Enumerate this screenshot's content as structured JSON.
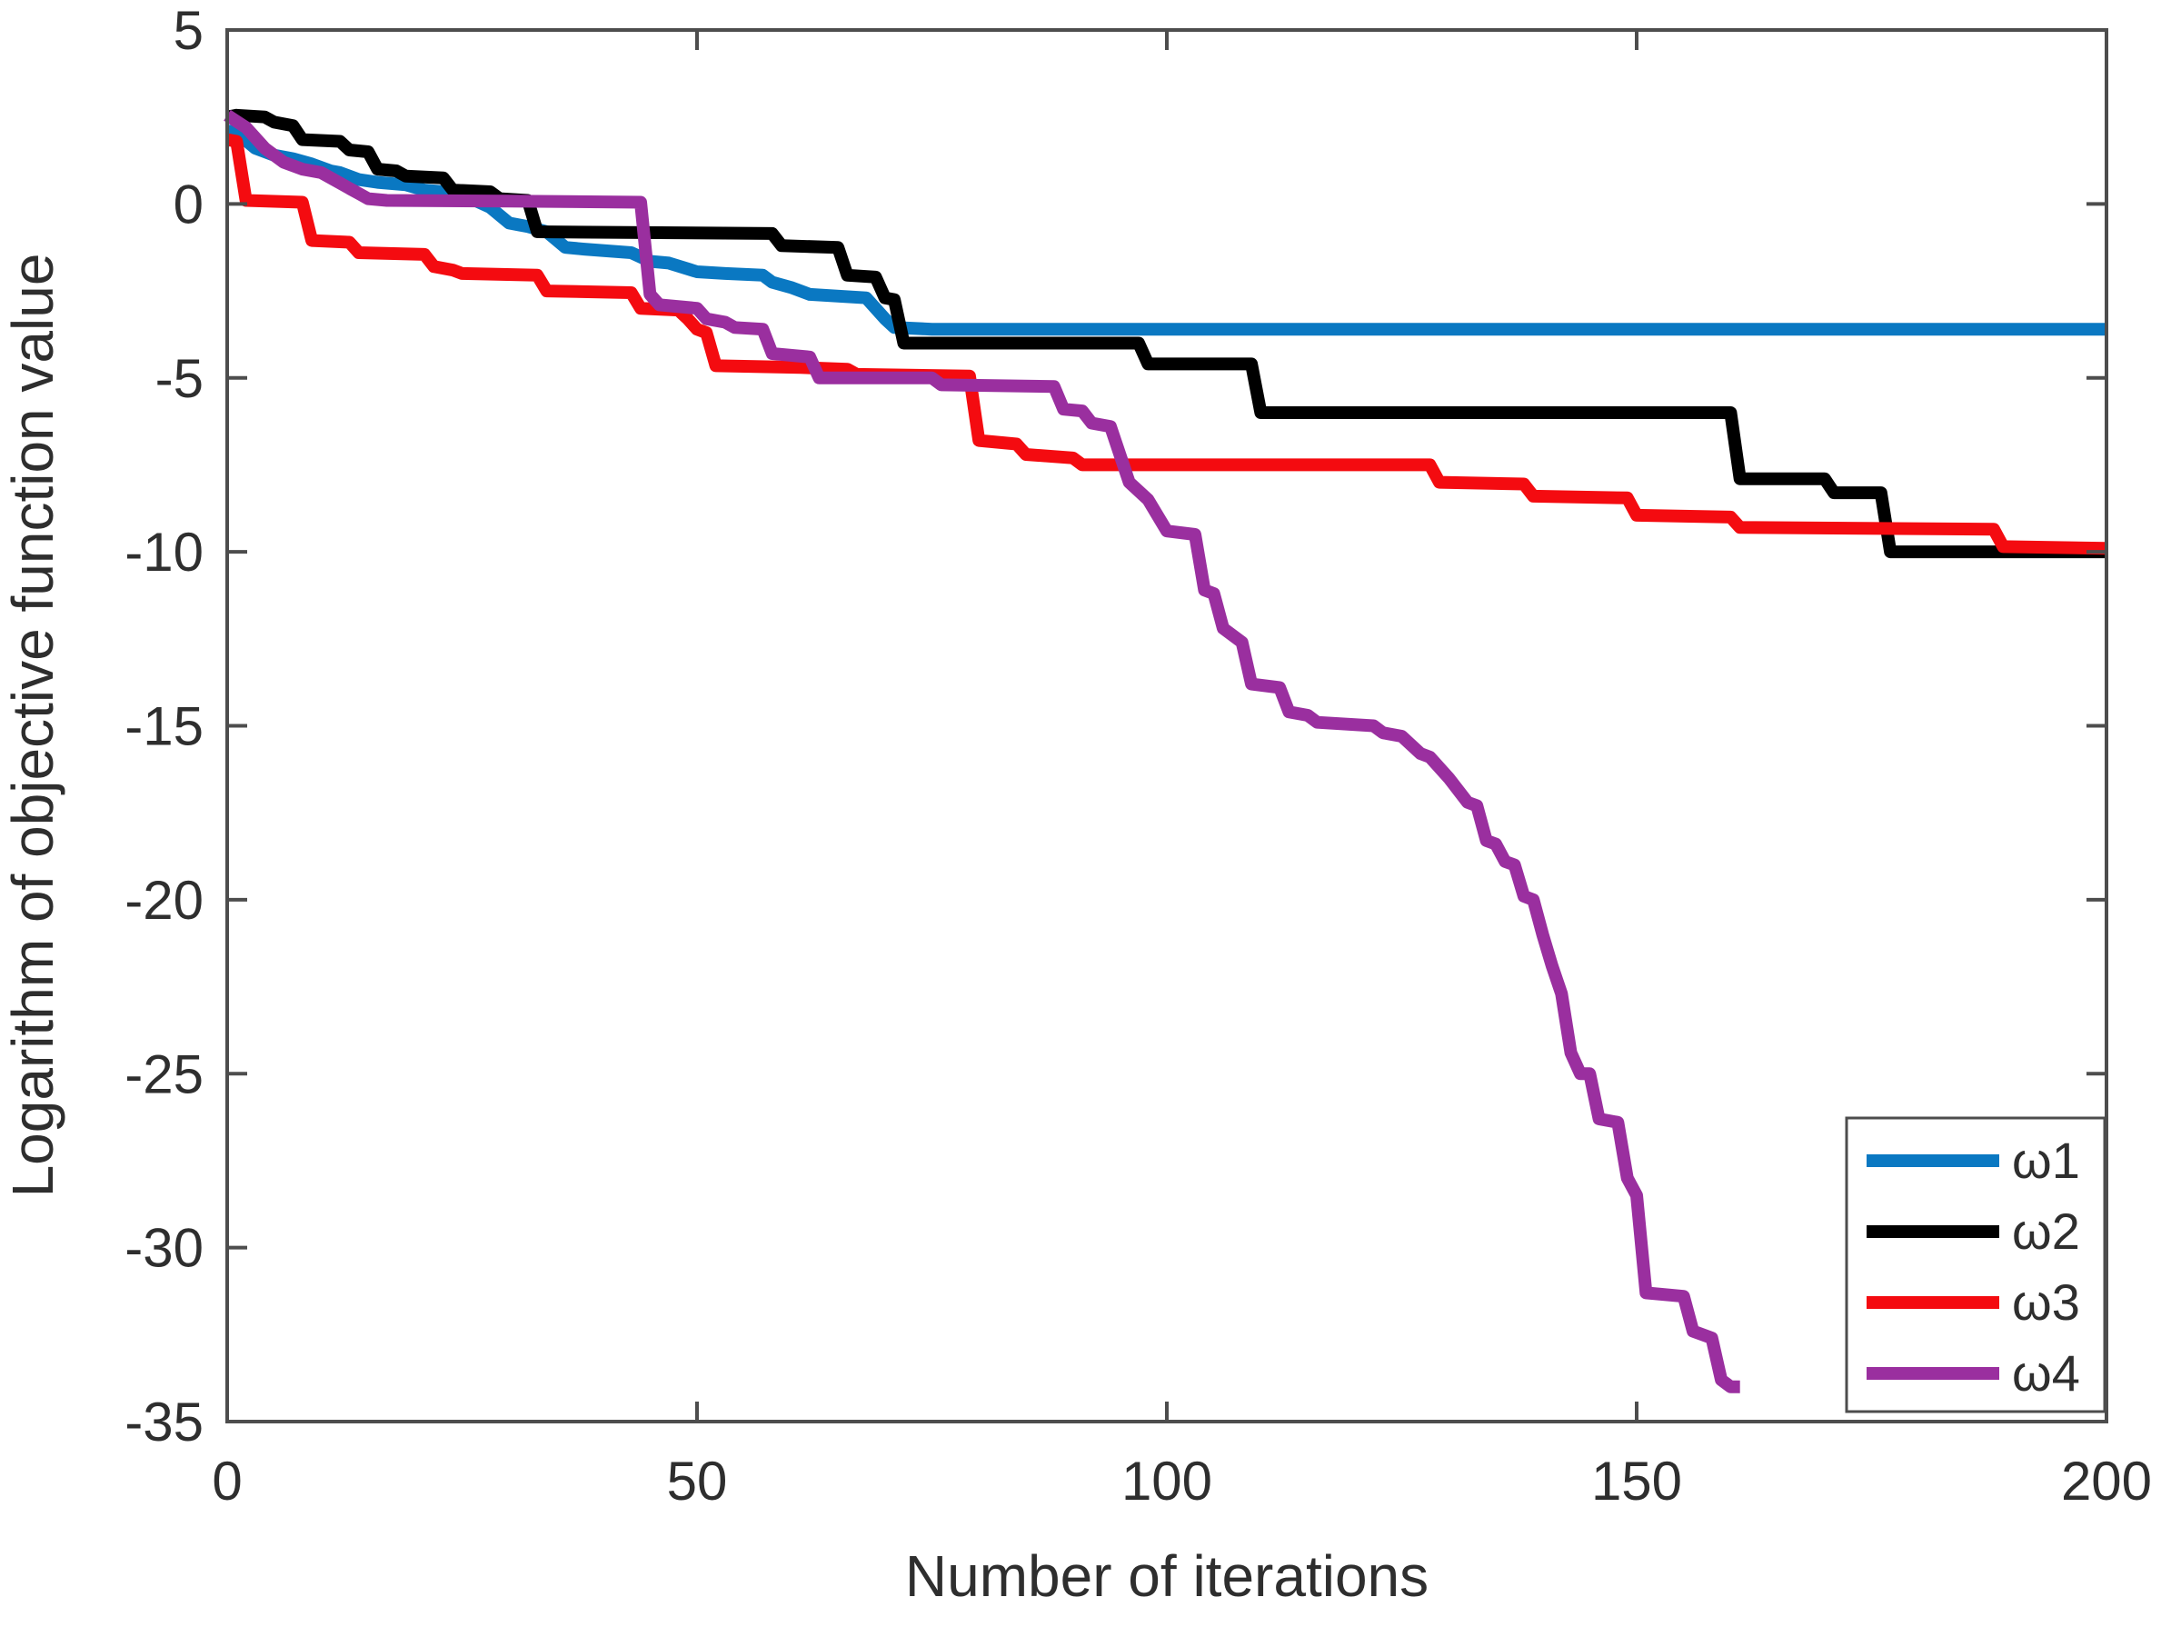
{
  "figure": {
    "background": "#ffffff",
    "frame_color": "#4d4d4d",
    "text_color": "#2e2e2e"
  },
  "chart_data": {
    "type": "line",
    "title": "",
    "xlabel": "Number of iterations",
    "ylabel": "Logarithm of objective function value",
    "xlim": [
      0,
      200
    ],
    "ylim": [
      -35,
      5
    ],
    "xticks": [
      0,
      50,
      100,
      150,
      200
    ],
    "yticks": [
      5,
      0,
      -5,
      -10,
      -15,
      -20,
      -25,
      -30,
      -35
    ],
    "grid": false,
    "legend_position": "bottom-right",
    "line_width": 14,
    "series": [
      {
        "name": "ω1",
        "id": "omega1",
        "color": "#0a78c2",
        "points": [
          [
            0,
            2.1
          ],
          [
            1,
            2.05
          ],
          [
            3,
            1.6
          ],
          [
            5,
            1.4
          ],
          [
            7,
            1.3
          ],
          [
            9,
            1.15
          ],
          [
            11,
            0.95
          ],
          [
            12,
            0.9
          ],
          [
            14,
            0.7
          ],
          [
            16,
            0.62
          ],
          [
            19,
            0.55
          ],
          [
            21,
            0.4
          ],
          [
            23,
            0.35
          ],
          [
            25,
            0.3
          ],
          [
            26,
            0.15
          ],
          [
            28,
            -0.1
          ],
          [
            30,
            -0.55
          ],
          [
            32,
            -0.65
          ],
          [
            34,
            -0.8
          ],
          [
            36,
            -1.25
          ],
          [
            38,
            -1.3
          ],
          [
            43,
            -1.4
          ],
          [
            45,
            -1.65
          ],
          [
            47,
            -1.7
          ],
          [
            50,
            -1.95
          ],
          [
            53,
            -2.0
          ],
          [
            57,
            -2.05
          ],
          [
            58,
            -2.25
          ],
          [
            60,
            -2.4
          ],
          [
            62,
            -2.6
          ],
          [
            68,
            -2.7
          ],
          [
            70,
            -3.3
          ],
          [
            71,
            -3.55
          ],
          [
            75,
            -3.6
          ],
          [
            200,
            -3.6
          ]
        ]
      },
      {
        "name": "ω2",
        "id": "omega2",
        "color": "#000000",
        "points": [
          [
            0,
            2.5
          ],
          [
            1,
            2.55
          ],
          [
            4,
            2.5
          ],
          [
            5,
            2.35
          ],
          [
            7,
            2.25
          ],
          [
            8,
            1.85
          ],
          [
            12,
            1.8
          ],
          [
            13,
            1.55
          ],
          [
            15,
            1.5
          ],
          [
            16,
            1.0
          ],
          [
            18,
            0.95
          ],
          [
            19,
            0.8
          ],
          [
            23,
            0.75
          ],
          [
            24,
            0.4
          ],
          [
            28,
            0.35
          ],
          [
            29,
            0.15
          ],
          [
            32,
            0.1
          ],
          [
            33,
            -0.8
          ],
          [
            58,
            -0.85
          ],
          [
            59,
            -1.2
          ],
          [
            65,
            -1.25
          ],
          [
            66,
            -2.05
          ],
          [
            69,
            -2.1
          ],
          [
            70,
            -2.7
          ],
          [
            71,
            -2.75
          ],
          [
            72,
            -4.0
          ],
          [
            97,
            -4.0
          ],
          [
            98,
            -4.6
          ],
          [
            109,
            -4.6
          ],
          [
            110,
            -6.0
          ],
          [
            160,
            -6.0
          ],
          [
            161,
            -7.9
          ],
          [
            170,
            -7.9
          ],
          [
            171,
            -8.3
          ],
          [
            176,
            -8.3
          ],
          [
            177,
            -10.0
          ],
          [
            200,
            -10.0
          ]
        ]
      },
      {
        "name": "ω3",
        "id": "omega3",
        "color": "#f40b10",
        "points": [
          [
            0,
            1.85
          ],
          [
            1,
            1.8
          ],
          [
            2,
            0.1
          ],
          [
            8,
            0.05
          ],
          [
            9,
            -1.05
          ],
          [
            13,
            -1.1
          ],
          [
            14,
            -1.4
          ],
          [
            21,
            -1.45
          ],
          [
            22,
            -1.8
          ],
          [
            24,
            -1.9
          ],
          [
            25,
            -2.0
          ],
          [
            33,
            -2.05
          ],
          [
            34,
            -2.5
          ],
          [
            43,
            -2.55
          ],
          [
            44,
            -3.0
          ],
          [
            48,
            -3.05
          ],
          [
            49,
            -3.3
          ],
          [
            50,
            -3.6
          ],
          [
            51,
            -3.7
          ],
          [
            52,
            -4.65
          ],
          [
            61,
            -4.7
          ],
          [
            66,
            -4.75
          ],
          [
            67,
            -4.9
          ],
          [
            79,
            -4.95
          ],
          [
            80,
            -6.8
          ],
          [
            84,
            -6.9
          ],
          [
            85,
            -7.2
          ],
          [
            90,
            -7.3
          ],
          [
            91,
            -7.5
          ],
          [
            128,
            -7.5
          ],
          [
            129,
            -8.0
          ],
          [
            138,
            -8.05
          ],
          [
            139,
            -8.4
          ],
          [
            149,
            -8.45
          ],
          [
            150,
            -8.95
          ],
          [
            160,
            -9.0
          ],
          [
            161,
            -9.3
          ],
          [
            188,
            -9.35
          ],
          [
            189,
            -9.85
          ],
          [
            200,
            -9.9
          ]
        ]
      },
      {
        "name": "ω4",
        "id": "omega4",
        "color": "#9a2f9f",
        "points": [
          [
            0,
            2.55
          ],
          [
            2,
            2.2
          ],
          [
            4,
            1.6
          ],
          [
            6,
            1.2
          ],
          [
            8,
            1.0
          ],
          [
            10,
            0.9
          ],
          [
            12,
            0.6
          ],
          [
            13,
            0.45
          ],
          [
            14,
            0.3
          ],
          [
            15,
            0.15
          ],
          [
            17,
            0.1
          ],
          [
            30,
            0.08
          ],
          [
            44,
            0.05
          ],
          [
            45,
            -2.6
          ],
          [
            46,
            -2.9
          ],
          [
            50,
            -3.0
          ],
          [
            51,
            -3.3
          ],
          [
            53,
            -3.4
          ],
          [
            54,
            -3.55
          ],
          [
            57,
            -3.6
          ],
          [
            58,
            -4.3
          ],
          [
            62,
            -4.4
          ],
          [
            63,
            -5.0
          ],
          [
            75,
            -5.0
          ],
          [
            76,
            -5.2
          ],
          [
            88,
            -5.25
          ],
          [
            89,
            -5.9
          ],
          [
            91,
            -5.95
          ],
          [
            92,
            -6.3
          ],
          [
            94,
            -6.4
          ],
          [
            95,
            -7.2
          ],
          [
            96,
            -8.0
          ],
          [
            98,
            -8.5
          ],
          [
            100,
            -9.4
          ],
          [
            103,
            -9.5
          ],
          [
            104,
            -11.1
          ],
          [
            105,
            -11.2
          ],
          [
            106,
            -12.2
          ],
          [
            108,
            -12.6
          ],
          [
            109,
            -13.8
          ],
          [
            112,
            -13.9
          ],
          [
            113,
            -14.6
          ],
          [
            115,
            -14.7
          ],
          [
            116,
            -14.9
          ],
          [
            122,
            -15.0
          ],
          [
            123,
            -15.2
          ],
          [
            125,
            -15.3
          ],
          [
            127,
            -15.8
          ],
          [
            128,
            -15.9
          ],
          [
            130,
            -16.5
          ],
          [
            132,
            -17.2
          ],
          [
            133,
            -17.3
          ],
          [
            134,
            -18.3
          ],
          [
            135,
            -18.4
          ],
          [
            136,
            -18.9
          ],
          [
            137,
            -19.0
          ],
          [
            138,
            -19.9
          ],
          [
            139,
            -20.0
          ],
          [
            140,
            -21.0
          ],
          [
            141,
            -21.9
          ],
          [
            142,
            -22.7
          ],
          [
            143,
            -24.4
          ],
          [
            144,
            -25.0
          ],
          [
            145,
            -25.0
          ],
          [
            146,
            -26.3
          ],
          [
            148,
            -26.4
          ],
          [
            149,
            -28.0
          ],
          [
            150,
            -28.5
          ],
          [
            151,
            -31.3
          ],
          [
            155,
            -31.4
          ],
          [
            156,
            -32.4
          ],
          [
            158,
            -32.6
          ],
          [
            159,
            -33.8
          ],
          [
            160,
            -34.0
          ],
          [
            161,
            -34.0
          ]
        ]
      }
    ]
  }
}
